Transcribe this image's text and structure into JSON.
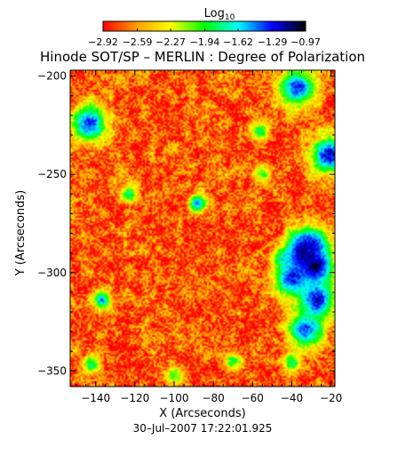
{
  "chart_data": {
    "type": "heatmap",
    "title": "Hinode SOT/SP – MERLIN : Degree of Polarization",
    "xlabel": "X (Arcseconds)",
    "ylabel": "Y (Arcseconds)",
    "timestamp": "30–Jul–2007 17:22:01.925",
    "xlim": [
      -153,
      -18
    ],
    "ylim": [
      -358,
      -197
    ],
    "x_ticks": [
      -140,
      -120,
      -100,
      -80,
      -60,
      -40,
      -20
    ],
    "x_tick_labels": [
      "−140",
      "−120",
      "−100",
      "−80",
      "−60",
      "−40",
      "−20"
    ],
    "y_ticks": [
      -200,
      -250,
      -300,
      -350
    ],
    "y_tick_labels": [
      "−200",
      "−250",
      "−300",
      "−350"
    ],
    "colorbar": {
      "label": "Log",
      "label_subscript": "10",
      "range": [
        -2.92,
        -0.97
      ],
      "tick_values": [
        -2.92,
        -2.59,
        -2.27,
        -1.94,
        -1.62,
        -1.29,
        -0.97
      ],
      "tick_labels": [
        "−2.92",
        "−2.59",
        "−2.27",
        "−1.94",
        "−1.62",
        "−1.29",
        "−0.97"
      ],
      "colors": [
        "#ff0000",
        "#ffa000",
        "#ffff00",
        "#00ff00",
        "#00ffff",
        "#0000ff",
        "#000000"
      ]
    },
    "background_log_dp": -2.75,
    "features": [
      {
        "x": -28,
        "y": -297,
        "log_dp": -1.05
      },
      {
        "x": -34,
        "y": -290,
        "log_dp": -1.15
      },
      {
        "x": -40,
        "y": -303,
        "log_dp": -1.3
      },
      {
        "x": -27,
        "y": -314,
        "log_dp": -1.2
      },
      {
        "x": -33,
        "y": -329,
        "log_dp": -1.35
      },
      {
        "x": -31,
        "y": -286,
        "log_dp": -1.25
      },
      {
        "x": -44,
        "y": -293,
        "log_dp": -1.6
      },
      {
        "x": -21,
        "y": -240,
        "log_dp": -1.2
      },
      {
        "x": -37,
        "y": -206,
        "log_dp": -1.3
      },
      {
        "x": -56,
        "y": -228,
        "log_dp": -1.8
      },
      {
        "x": -88,
        "y": -265,
        "log_dp": -1.45
      },
      {
        "x": -143,
        "y": -224,
        "log_dp": -1.3
      },
      {
        "x": -123,
        "y": -260,
        "log_dp": -1.8
      },
      {
        "x": -137,
        "y": -314,
        "log_dp": -1.5
      },
      {
        "x": -142,
        "y": -347,
        "log_dp": -1.8
      },
      {
        "x": -40,
        "y": -346,
        "log_dp": -1.8
      },
      {
        "x": -70,
        "y": -345,
        "log_dp": -1.9
      },
      {
        "x": -55,
        "y": -250,
        "log_dp": -1.95
      },
      {
        "x": -100,
        "y": -352,
        "log_dp": -2.0
      }
    ]
  }
}
